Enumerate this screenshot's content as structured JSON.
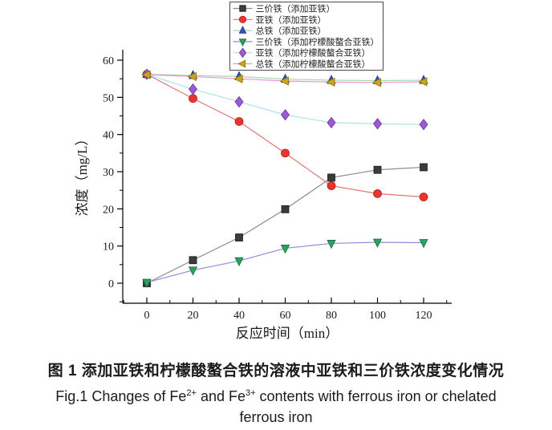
{
  "figure": {
    "caption_line1": "图 1 添加亚铁和柠檬酸螯合铁的溶液中亚铁和三价铁浓度变化情况",
    "caption_line2": {
      "p1": "Fig.1 Changes of Fe",
      "s1": "2+",
      "p2": " and Fe",
      "s2": "3+",
      "p3": " contents with ferrous iron or chelated"
    },
    "caption_line3": "ferrous iron"
  },
  "chart_data": {
    "type": "line",
    "title": "",
    "xlabel": "反应时间（min）",
    "ylabel": "浓度（mg/L）",
    "x": [
      0,
      20,
      40,
      60,
      80,
      100,
      120
    ],
    "x_ticks": [
      0,
      20,
      40,
      60,
      80,
      100,
      120
    ],
    "y_ticks": [
      0,
      10,
      20,
      30,
      40,
      50,
      60
    ],
    "x_minor_step": 10,
    "y_minor_step": 5,
    "xlim": [
      -10.4,
      132
    ],
    "ylim": [
      -5.4,
      62.8
    ],
    "grid": false,
    "legend_position": "top-center-inside",
    "series": [
      {
        "name": "三价铁（添加亚铁）",
        "marker": "square",
        "marker_color": "#3b3b3b",
        "edge_color": "#1c1c1c",
        "line_color": "#8a8a8a",
        "values": [
          0,
          6.2,
          12.3,
          19.9,
          28.4,
          30.5,
          31.2
        ]
      },
      {
        "name": "亚铁（添加亚铁）",
        "marker": "circle",
        "marker_color": "#e8352e",
        "edge_color": "#b3201b",
        "line_color": "#e57373",
        "values": [
          56.2,
          49.7,
          43.5,
          35.0,
          26.2,
          24.1,
          23.2
        ]
      },
      {
        "name": "总铁（添加亚铁）",
        "marker": "triangle-up",
        "marker_color": "#3454c9",
        "edge_color": "#1c2f8a",
        "line_color": "#a8d8ae",
        "values": [
          56.2,
          55.9,
          55.6,
          54.9,
          54.6,
          54.5,
          54.6
        ]
      },
      {
        "name": "三价铁（添加柠檬酸螯合亚铁）",
        "marker": "triangle-down",
        "marker_color": "#2ba05f",
        "edge_color": "#1a6e41",
        "line_color": "#8e8ed8",
        "values": [
          0.2,
          3.5,
          6.0,
          9.4,
          10.7,
          11.0,
          10.9
        ]
      },
      {
        "name": "亚铁（添加柠檬酸螯合亚铁）",
        "marker": "diamond",
        "marker_color": "#9c5bd2",
        "edge_color": "#6c339c",
        "line_color": "#aee3e8",
        "values": [
          56.2,
          52.2,
          48.8,
          45.3,
          43.2,
          42.9,
          42.7
        ]
      },
      {
        "name": "总铁（添加柠檬酸螯合亚铁）",
        "marker": "triangle-left",
        "marker_color": "#c9a614",
        "edge_color": "#87700a",
        "line_color": "#ee93d8",
        "values": [
          56.1,
          55.6,
          55.0,
          54.4,
          54.1,
          54.0,
          54.2
        ]
      }
    ]
  }
}
